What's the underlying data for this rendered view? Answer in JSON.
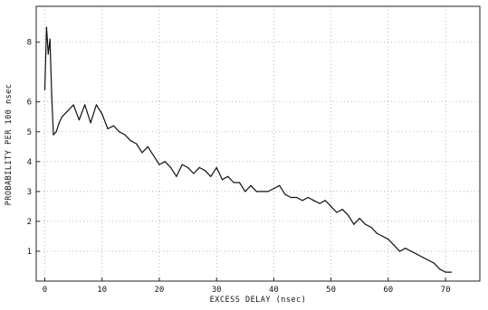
{
  "chart_data": {
    "type": "line",
    "xlabel": "EXCESS DELAY (nsec)",
    "ylabel": "PROBABILITY PER 100 nsec",
    "xlim": [
      -1.5,
      76
    ],
    "ylim": [
      0,
      9.2
    ],
    "x_ticks": [
      0,
      10,
      20,
      30,
      40,
      50,
      60,
      70
    ],
    "y_ticks": [
      1,
      2,
      3,
      4,
      5,
      6,
      8
    ],
    "x_tick_labels": [
      "0",
      "10",
      "20",
      "30",
      "40",
      "50",
      "60",
      "70"
    ],
    "y_tick_labels": [
      "1",
      "2",
      "3",
      "4",
      "5",
      "6",
      "8"
    ],
    "grid": true,
    "series": [
      {
        "color": "#111111",
        "x": [
          0,
          0.3,
          0.6,
          0.9,
          1.2,
          1.5,
          2,
          2.5,
          3,
          4,
          5,
          6,
          7,
          8,
          9,
          10,
          11,
          12,
          13,
          14,
          15,
          16,
          17,
          18,
          19,
          20,
          21,
          22,
          23,
          24,
          25,
          26,
          27,
          28,
          29,
          30,
          31,
          32,
          33,
          34,
          35,
          36,
          37,
          38,
          39,
          40,
          41,
          42,
          43,
          44,
          45,
          46,
          47,
          48,
          49,
          50,
          51,
          52,
          53,
          54,
          55,
          56,
          57,
          58,
          59,
          60,
          61,
          62,
          63,
          64,
          65,
          66,
          67,
          68,
          69,
          70,
          71
        ],
        "values": [
          6.4,
          8.5,
          7.6,
          8.1,
          6.2,
          4.9,
          5.0,
          5.3,
          5.5,
          5.7,
          5.9,
          5.4,
          5.9,
          5.3,
          5.9,
          5.6,
          5.1,
          5.2,
          5.0,
          4.9,
          4.7,
          4.6,
          4.3,
          4.5,
          4.2,
          3.9,
          4.0,
          3.8,
          3.5,
          3.9,
          3.8,
          3.6,
          3.8,
          3.7,
          3.5,
          3.8,
          3.4,
          3.5,
          3.3,
          3.3,
          3.0,
          3.2,
          3.0,
          3.0,
          3.0,
          3.1,
          3.2,
          2.9,
          2.8,
          2.8,
          2.7,
          2.8,
          2.7,
          2.6,
          2.7,
          2.5,
          2.3,
          2.4,
          2.2,
          1.9,
          2.1,
          1.9,
          1.8,
          1.6,
          1.5,
          1.4,
          1.2,
          1.0,
          1.1,
          1.0,
          0.9,
          0.8,
          0.7,
          0.6,
          0.4,
          0.3,
          0.3
        ]
      }
    ]
  }
}
